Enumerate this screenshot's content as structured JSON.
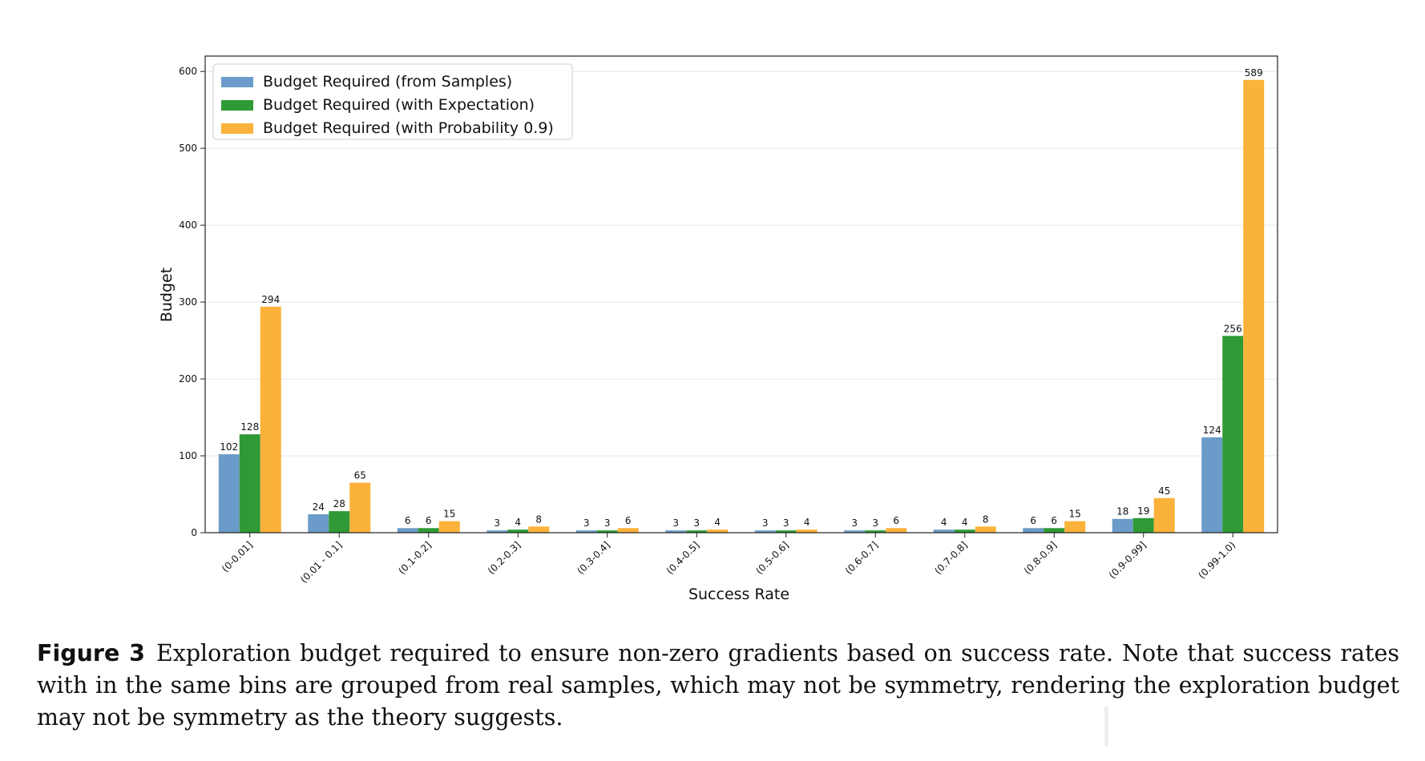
{
  "figure": {
    "label": "Figure 3",
    "caption": "Exploration budget required to ensure non-zero gradients based on success rate. Note that success rates with in the same bins are grouped from real samples, which may not be symmetry, rendering the exploration budget may not be symmetry as the theory suggests."
  },
  "chart_data": {
    "type": "bar",
    "title": "",
    "xlabel": "Success Rate",
    "ylabel": "Budget",
    "ylim": [
      0,
      620
    ],
    "yticks": [
      0,
      100,
      200,
      300,
      400,
      500,
      600
    ],
    "grid": true,
    "legend_position": "top-left",
    "categories": [
      "(0-0.01]",
      "(0.01 - 0.1]",
      "(0.1-0.2]",
      "(0.2-0.3]",
      "(0.3-0.4]",
      "(0.4-0.5]",
      "(0.5-0.6]",
      "(0.6-0.7]",
      "(0.7-0.8]",
      "(0.8-0.9]",
      "(0.9-0.99]",
      "(0.99-1.0)"
    ],
    "series": [
      {
        "name": "Budget Required (from Samples)",
        "color": "#6b9bc8",
        "values": [
          102,
          24,
          6,
          3,
          3,
          3,
          3,
          3,
          4,
          6,
          18,
          124
        ]
      },
      {
        "name": "Budget Required (with Expectation)",
        "color": "#2f9a35",
        "values": [
          128,
          28,
          6,
          4,
          3,
          3,
          3,
          3,
          4,
          6,
          19,
          256
        ]
      },
      {
        "name": "Budget Required (with Probability 0.9)",
        "color": "#fbb23a",
        "values": [
          294,
          65,
          15,
          8,
          6,
          4,
          4,
          6,
          8,
          15,
          45,
          589
        ]
      }
    ]
  }
}
